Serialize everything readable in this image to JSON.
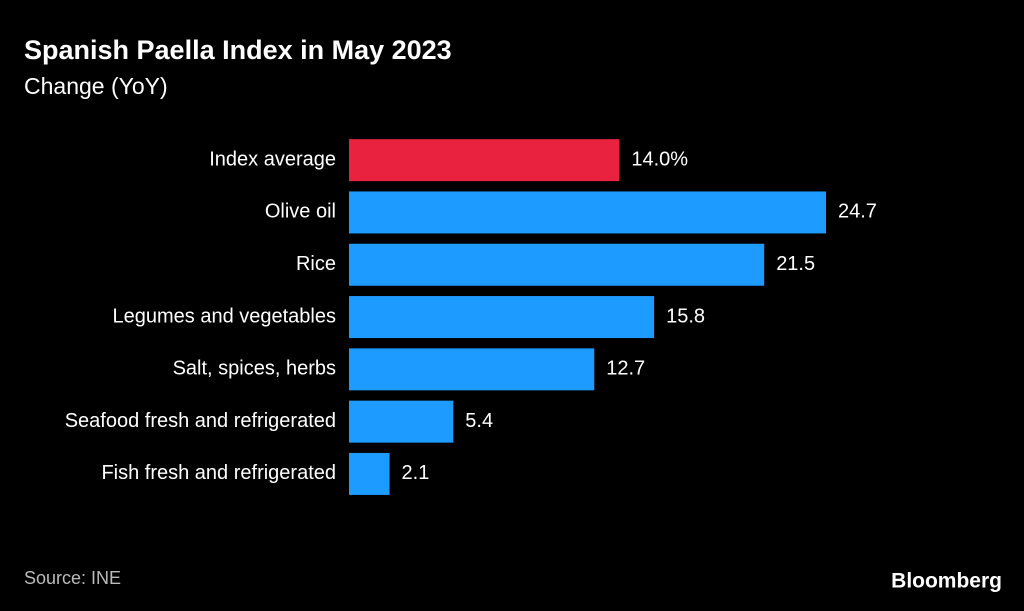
{
  "chart_data": {
    "type": "bar",
    "orientation": "horizontal",
    "title": "Spanish Paella Index in May 2023",
    "subtitle": "Change (YoY)",
    "categories": [
      "Index average",
      "Olive oil",
      "Rice",
      "Legumes and vegetables",
      "Salt, spices, herbs",
      "Seafood fresh and refrigerated",
      "Fish fresh and refrigerated"
    ],
    "values": [
      14.0,
      24.7,
      21.5,
      15.8,
      12.7,
      5.4,
      2.1
    ],
    "value_labels": [
      "14.0%",
      "24.7",
      "21.5",
      "15.8",
      "12.7",
      "5.4",
      "2.1"
    ],
    "colors": [
      "#e9223f",
      "#1e9bff",
      "#1e9bff",
      "#1e9bff",
      "#1e9bff",
      "#1e9bff",
      "#1e9bff"
    ],
    "source": "Source: INE",
    "logo": "Bloomberg"
  }
}
